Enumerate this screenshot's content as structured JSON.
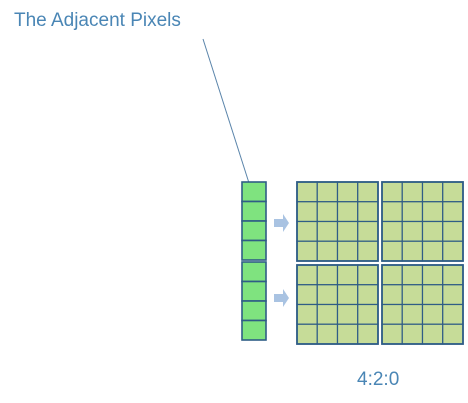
{
  "diagram": {
    "title": "The Adjacent Pixels",
    "caption": "4:2:0",
    "colors": {
      "text": "#4a86b5",
      "adjacent_fill": "#7fe37f",
      "adjacent_stroke": "#2f5d86",
      "grid_fill": "#c6dc98",
      "grid_stroke": "#2f5d86",
      "arrow": "#a9c3e2",
      "leader_line": "#5a84aa"
    },
    "adjacent_column": {
      "groups": 2,
      "cells_per_group": 4
    },
    "grid": {
      "rows": 8,
      "columns": 8,
      "block_rows": 2,
      "block_columns": 2
    },
    "arrows": 2
  }
}
